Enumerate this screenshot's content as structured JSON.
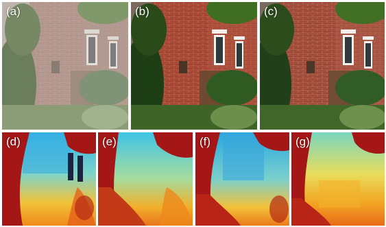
{
  "panels": [
    {
      "id": "a",
      "label": "(a)",
      "kind": "photo-hazy"
    },
    {
      "id": "b",
      "label": "(b)",
      "kind": "photo-dehazed"
    },
    {
      "id": "c",
      "label": "(c)",
      "kind": "photo-dehazed"
    },
    {
      "id": "d",
      "label": "(d)",
      "kind": "depth-map"
    },
    {
      "id": "e",
      "label": "(e)",
      "kind": "depth-map"
    },
    {
      "id": "f",
      "label": "(f)",
      "kind": "depth-map"
    },
    {
      "id": "g",
      "label": "(g)",
      "kind": "depth-map"
    }
  ],
  "colors": {
    "brick_hazy": "#a07a70",
    "brick_clear": "#a8493a",
    "foliage": "#2e5a1e",
    "depth_near": "#a51616",
    "depth_mid": "#f2a21a",
    "depth_far": "#2fb4e8"
  }
}
